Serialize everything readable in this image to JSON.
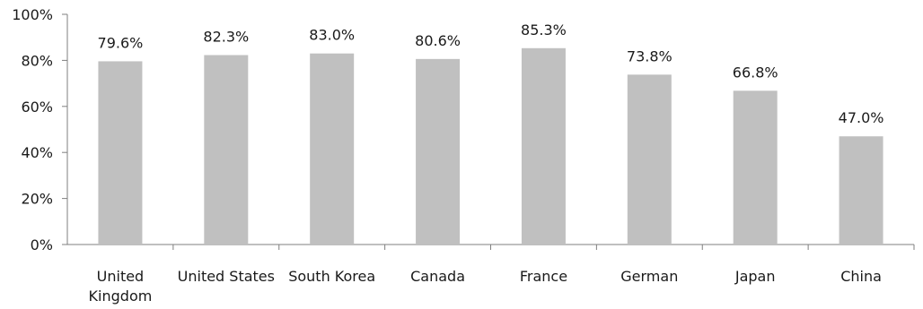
{
  "chart_data": {
    "type": "bar",
    "title": "",
    "xlabel": "",
    "ylabel": "",
    "categories": [
      [
        "United",
        "Kingdom"
      ],
      [
        "United States"
      ],
      [
        "South Korea"
      ],
      [
        "Canada"
      ],
      [
        "France"
      ],
      [
        "German"
      ],
      [
        "Japan"
      ],
      [
        "China"
      ]
    ],
    "values": [
      79.6,
      82.3,
      83.0,
      80.6,
      85.3,
      73.8,
      66.8,
      47.0
    ],
    "data_labels": [
      "79.6%",
      "82.3%",
      "83.0%",
      "80.6%",
      "85.3%",
      "73.8%",
      "66.8%",
      "47.0%"
    ],
    "ylim": [
      0,
      100
    ],
    "yticks": [
      0,
      20,
      40,
      60,
      80,
      100
    ],
    "ytick_labels": [
      "0%",
      "20%",
      "40%",
      "60%",
      "80%",
      "100%"
    ],
    "bar_color": "#c0c0c0",
    "grid": false,
    "legend": "none"
  }
}
